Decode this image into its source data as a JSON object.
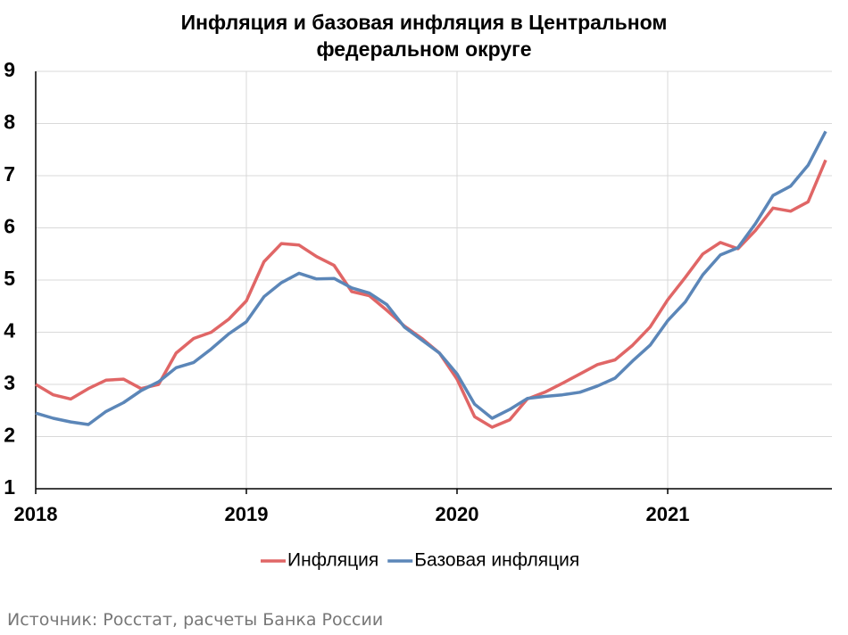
{
  "chart_data": {
    "type": "line",
    "title": "Инфляция и базовая инфляция в Центральном федеральном округе",
    "source": "Источник: Росстат, расчеты Банка России",
    "categories": [
      "2018",
      null,
      null,
      null,
      null,
      null,
      null,
      null,
      null,
      null,
      null,
      null,
      "2019",
      null,
      null,
      null,
      null,
      null,
      null,
      null,
      null,
      null,
      null,
      null,
      "2020",
      null,
      null,
      null,
      null,
      null,
      null,
      null,
      null,
      null,
      null,
      null,
      "2021",
      null,
      null,
      null,
      null,
      null,
      null,
      null,
      null,
      null
    ],
    "series": [
      {
        "name": "Инфляция",
        "color": "#e06666",
        "values": [
          3.0,
          2.8,
          2.72,
          2.92,
          3.08,
          3.1,
          2.92,
          3.0,
          3.6,
          3.88,
          4.0,
          4.25,
          4.6,
          5.35,
          5.7,
          5.67,
          5.45,
          5.28,
          4.78,
          4.7,
          4.42,
          4.12,
          3.88,
          3.6,
          3.1,
          2.38,
          2.18,
          2.32,
          2.72,
          2.85,
          3.02,
          3.2,
          3.38,
          3.47,
          3.75,
          4.1,
          4.62,
          5.05,
          5.5,
          5.72,
          5.6,
          5.95,
          6.38,
          6.32,
          6.5,
          7.3
        ]
      },
      {
        "name": "Базовая инфляция",
        "color": "#5b86b8",
        "values": [
          2.45,
          2.35,
          2.28,
          2.23,
          2.48,
          2.65,
          2.88,
          3.05,
          3.32,
          3.42,
          3.68,
          3.97,
          4.2,
          4.68,
          4.95,
          5.13,
          5.02,
          5.03,
          4.85,
          4.75,
          4.53,
          4.1,
          3.85,
          3.6,
          3.2,
          2.62,
          2.35,
          2.52,
          2.73,
          2.77,
          2.8,
          2.85,
          2.97,
          3.12,
          3.45,
          3.75,
          4.22,
          4.58,
          5.1,
          5.48,
          5.62,
          6.08,
          6.62,
          6.8,
          7.2,
          7.85
        ]
      }
    ],
    "ylim": [
      1,
      9
    ],
    "yticks": [
      1,
      2,
      3,
      4,
      5,
      6,
      7,
      8,
      9
    ],
    "grid": true,
    "legend": "bottom"
  }
}
